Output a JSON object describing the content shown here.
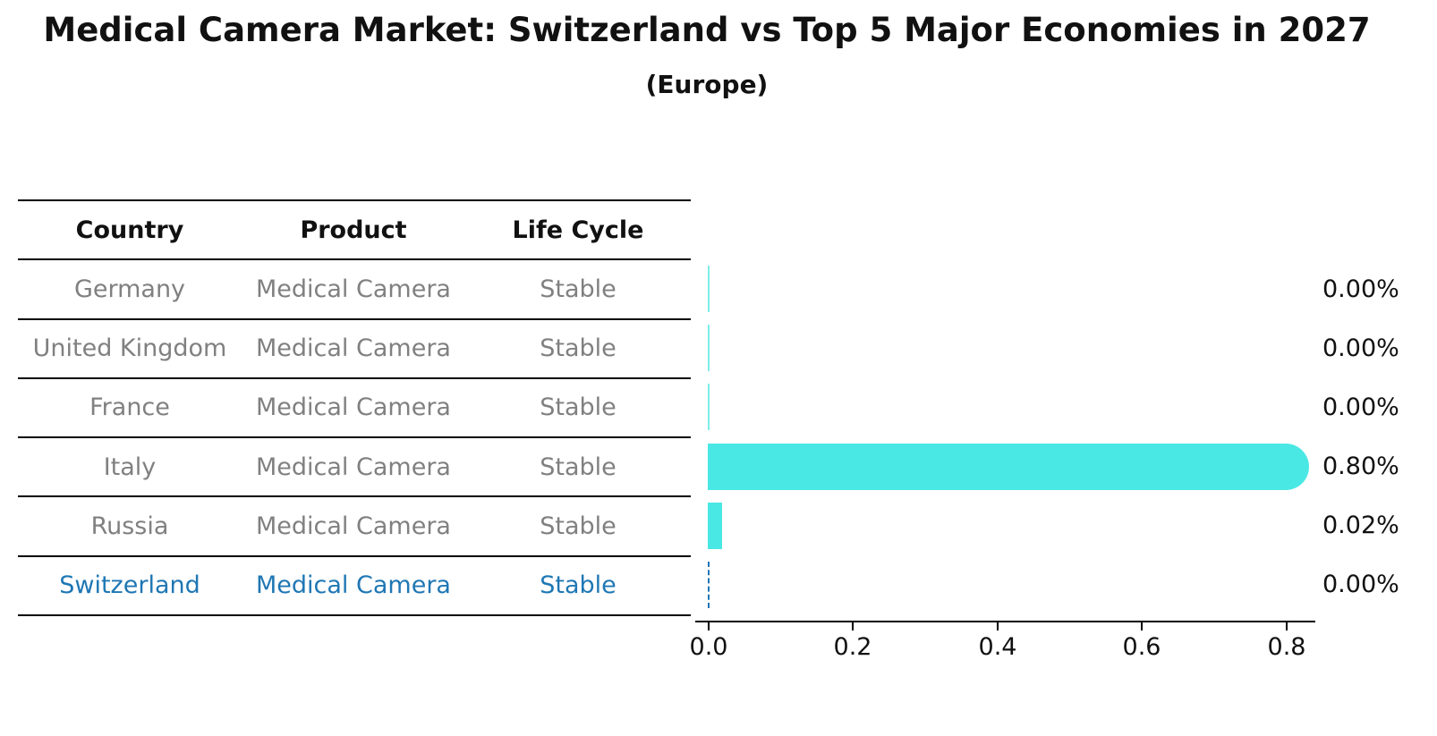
{
  "title": "Medical Camera Market: Switzerland vs Top 5 Major Economies in 2027",
  "subtitle": "(Europe)",
  "table": {
    "headers": [
      "Country",
      "Product",
      "Life Cycle"
    ],
    "rows": [
      {
        "country": "Germany",
        "product": "Medical Camera",
        "life_cycle": "Stable",
        "highlighted": false
      },
      {
        "country": "United Kingdom",
        "product": "Medical Camera",
        "life_cycle": "Stable",
        "highlighted": false
      },
      {
        "country": "France",
        "product": "Medical Camera",
        "life_cycle": "Stable",
        "highlighted": false
      },
      {
        "country": "Italy",
        "product": "Medical Camera",
        "life_cycle": "Stable",
        "highlighted": false
      },
      {
        "country": "Russia",
        "product": "Medical Camera",
        "life_cycle": "Stable",
        "highlighted": false
      },
      {
        "country": "Switzerland",
        "product": "Medical Camera",
        "life_cycle": "Stable",
        "highlighted": true
      }
    ]
  },
  "chart_data": {
    "type": "bar",
    "orientation": "horizontal",
    "title": "Medical Camera Market: Switzerland vs Top 5 Major Economies in 2027",
    "subtitle": "(Europe)",
    "categories": [
      "Germany",
      "United Kingdom",
      "France",
      "Italy",
      "Russia",
      "Switzerland"
    ],
    "values": [
      0.0,
      0.0,
      0.0,
      0.8,
      0.02,
      0.0
    ],
    "value_labels": [
      "0.00%",
      "0.00%",
      "0.00%",
      "0.80%",
      "0.02%",
      "0.00%"
    ],
    "x_tick_labels": [
      "0.0",
      "0.2",
      "0.4",
      "0.6",
      "0.8"
    ],
    "xlim": [
      0,
      0.85
    ],
    "grid": false,
    "legend": "none",
    "bar_color": "#4ae8e4",
    "highlight_color": "#1f77b4"
  },
  "colors": {
    "bar": "#4ae8e4",
    "highlight_blue": "#1f77b4",
    "muted_text": "#808080",
    "axis_black": "#000000"
  }
}
